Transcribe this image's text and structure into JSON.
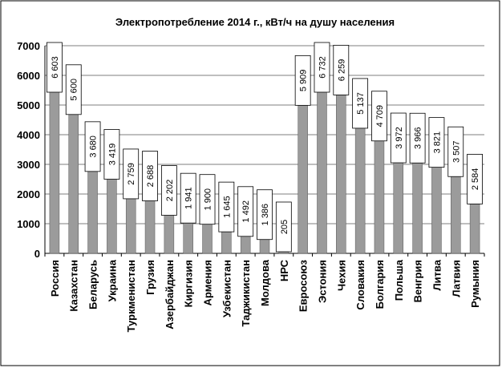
{
  "chart_data": {
    "type": "bar",
    "title": "Электропотребление 2014 г., кВт/ч на душу населения",
    "categories": [
      "Россия",
      "Казахстан",
      "Беларусь",
      "Украина",
      "Туркменистан",
      "Грузия",
      "Азербайджан",
      "Киргизия",
      "Армения",
      "Узбекистан",
      "Таджикистан",
      "Молдова",
      "НРС",
      "Евросоюз",
      "Эстония",
      "Чехия",
      "Словакия",
      "Болгария",
      "Польша",
      "Венгрия",
      "Литва",
      "Латвия",
      "Румыния"
    ],
    "values": [
      6603,
      5600,
      3680,
      3419,
      2759,
      2688,
      2202,
      1941,
      1900,
      1645,
      1492,
      1386,
      205,
      5909,
      6732,
      6259,
      5137,
      4709,
      3972,
      3966,
      3821,
      3507,
      2584
    ],
    "data_labels": [
      "6 603",
      "5 600",
      "3 680",
      "3 419",
      "2 759",
      "2 688",
      "2 202",
      "1 941",
      "1 900",
      "1 645",
      "1 492",
      "1 386",
      "205",
      "5 909",
      "6 732",
      "6 259",
      "5 137",
      "4 709",
      "3 972",
      "3 966",
      "3 821",
      "3 507",
      "2 584"
    ],
    "labeled": [
      true,
      true,
      true,
      true,
      true,
      true,
      true,
      true,
      true,
      true,
      true,
      true,
      true,
      true,
      true,
      true,
      true,
      true,
      true,
      true,
      true,
      true,
      true
    ],
    "ylim": [
      0,
      7000
    ],
    "yticks": [
      "0",
      "1000",
      "2000",
      "3000",
      "4000",
      "5000",
      "6000",
      "7000"
    ],
    "xlabel": "",
    "ylabel": "",
    "grid": true,
    "legend": "none",
    "colors": {
      "bar": "#9b9b9b",
      "bar_edge": "#555555",
      "grid": "#7f7f7f",
      "plot_bg": "#ffffff",
      "label_box": "#ffffff",
      "label_edge": "#000000"
    }
  }
}
